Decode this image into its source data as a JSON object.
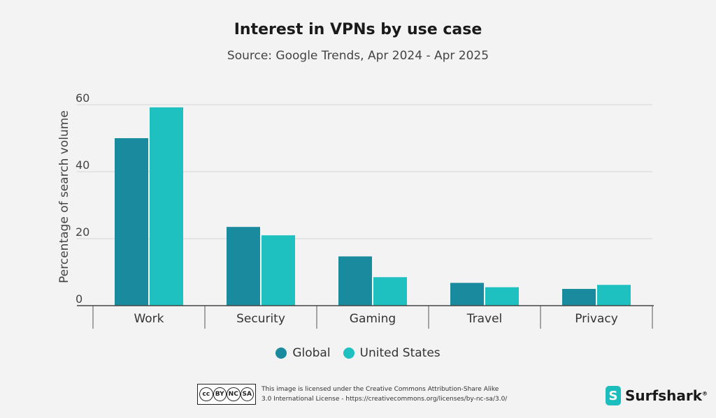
{
  "chart_data": {
    "type": "bar",
    "title": "Interest in VPNs by use case",
    "subtitle": "Source: Google Trends, Apr 2024 - Apr 2025",
    "ylabel": "Percentage of search volume",
    "xlabel": "",
    "ylim": [
      0,
      60
    ],
    "yticks": [
      0,
      20,
      40,
      60
    ],
    "grid": true,
    "legend_position": "bottom",
    "categories": [
      "Work",
      "Security",
      "Gaming",
      "Travel",
      "Privacy"
    ],
    "series": [
      {
        "name": "Global",
        "color": "#1a8a9e",
        "values": [
          50,
          23.5,
          14.7,
          6.8,
          5
        ]
      },
      {
        "name": "United States",
        "color": "#1ec0c0",
        "values": [
          59.2,
          21,
          8.5,
          5.5,
          6.2
        ]
      }
    ]
  },
  "footer": {
    "license_line1": "This image is licensed under the Creative Commons Attribution-Share Alike",
    "license_line2": "3.0 International License - https://creativecommons.org/licenses/by-nc-sa/3.0/",
    "cc_badge_labels": [
      "cc",
      "BY",
      "NC",
      "SA"
    ],
    "brand": "Surfshark",
    "brand_mark": "®"
  }
}
